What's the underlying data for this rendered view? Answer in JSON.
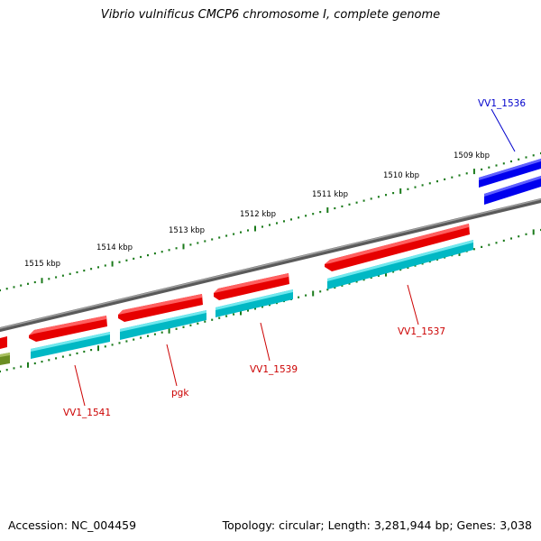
{
  "title": "Vibrio vulnificus CMCP6 chromosome I, complete genome",
  "footer": {
    "accession": "Accession: NC_004459",
    "summary": "Topology: circular; Length: 3,281,944 bp; Genes: 3,038"
  },
  "scale_labels": [
    "1515 kbp",
    "1514 kbp",
    "1513 kbp",
    "1512 kbp",
    "1511 kbp",
    "1510 kbp",
    "1509 kbp"
  ],
  "gene_labels": [
    {
      "id": "vv1-1536",
      "text": "VV1_1536",
      "color": "#0000cc"
    },
    {
      "id": "vv1-1537",
      "text": "VV1_1537",
      "color": "#cc0000"
    },
    {
      "id": "vv1-1539",
      "text": "VV1_1539",
      "color": "#cc0000"
    },
    {
      "id": "pgk",
      "text": "pgk",
      "color": "#cc0000"
    },
    {
      "id": "vv1-1541",
      "text": "VV1_1541",
      "color": "#cc0000"
    }
  ],
  "colors": {
    "cds_forward_strand": "#ff0000",
    "cds_reverse_strand": "#0000ee",
    "cds_track": "#00cccc",
    "other_feature": "#6b8e23",
    "backbone": "#808080",
    "scale_ticks": "#1a7a1a"
  }
}
